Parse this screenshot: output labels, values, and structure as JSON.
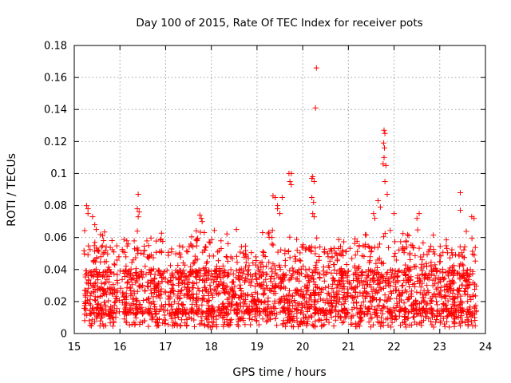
{
  "chart_data": {
    "type": "scatter",
    "title": "Day 100 of 2015, Rate Of TEC Index for receiver pots",
    "xlabel": "GPS time / hours",
    "ylabel": "ROTI / TECUs",
    "xlim": [
      15,
      24
    ],
    "ylim": [
      0,
      0.18
    ],
    "x_ticks": [
      "15",
      "16",
      "17",
      "18",
      "19",
      "20",
      "21",
      "22",
      "23",
      "24"
    ],
    "y_ticks": [
      "0",
      "0.02",
      "0.04",
      "0.06",
      "0.08",
      "0.1",
      "0.12",
      "0.14",
      "0.16",
      "0.18"
    ],
    "marker": "plus",
    "color": "#ff0000",
    "grid": true,
    "series": [
      {
        "name": "ROTI",
        "note": "dense cloud of points from 15.2 h to 23.8 h, mostly 0.005-0.05 TECU, with distinct outliers",
        "x_range": [
          15.2,
          23.8
        ],
        "y_range": [
          0.004,
          0.166
        ],
        "outliers": [
          [
            15.27,
            0.08
          ],
          [
            15.3,
            0.078
          ],
          [
            15.3,
            0.075
          ],
          [
            15.4,
            0.073
          ],
          [
            15.45,
            0.068
          ],
          [
            15.48,
            0.065
          ],
          [
            16.15,
            0.058
          ],
          [
            16.18,
            0.056
          ],
          [
            16.4,
            0.087
          ],
          [
            16.38,
            0.078
          ],
          [
            16.42,
            0.076
          ],
          [
            16.4,
            0.073
          ],
          [
            16.38,
            0.064
          ],
          [
            16.9,
            0.059
          ],
          [
            17.75,
            0.074
          ],
          [
            17.78,
            0.072
          ],
          [
            17.8,
            0.07
          ],
          [
            18.55,
            0.065
          ],
          [
            19.35,
            0.086
          ],
          [
            19.4,
            0.085
          ],
          [
            19.45,
            0.08
          ],
          [
            19.45,
            0.078
          ],
          [
            19.5,
            0.075
          ],
          [
            19.55,
            0.085
          ],
          [
            19.7,
            0.1
          ],
          [
            19.75,
            0.1
          ],
          [
            19.72,
            0.095
          ],
          [
            19.75,
            0.093
          ],
          [
            20.2,
            0.097
          ],
          [
            20.22,
            0.098
          ],
          [
            20.25,
            0.095
          ],
          [
            20.2,
            0.085
          ],
          [
            20.24,
            0.082
          ],
          [
            20.22,
            0.075
          ],
          [
            20.25,
            0.073
          ],
          [
            20.3,
            0.166
          ],
          [
            20.28,
            0.141
          ],
          [
            21.55,
            0.075
          ],
          [
            21.58,
            0.072
          ],
          [
            21.65,
            0.083
          ],
          [
            21.7,
            0.079
          ],
          [
            21.78,
            0.127
          ],
          [
            21.8,
            0.125
          ],
          [
            21.77,
            0.119
          ],
          [
            21.79,
            0.116
          ],
          [
            21.78,
            0.11
          ],
          [
            21.76,
            0.106
          ],
          [
            21.82,
            0.105
          ],
          [
            21.8,
            0.095
          ],
          [
            21.85,
            0.087
          ],
          [
            22.0,
            0.075
          ],
          [
            22.5,
            0.072
          ],
          [
            22.55,
            0.075
          ],
          [
            23.45,
            0.088
          ],
          [
            23.45,
            0.077
          ],
          [
            23.7,
            0.073
          ],
          [
            23.75,
            0.072
          ]
        ]
      }
    ]
  }
}
